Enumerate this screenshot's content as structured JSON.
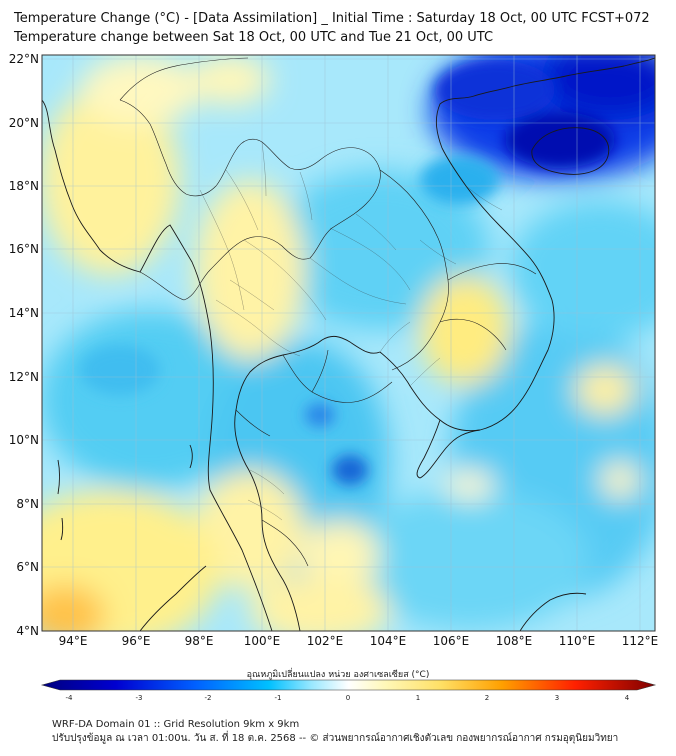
{
  "header": {
    "title_line1": "Temperature Change (°C) - [Data Assimilation] _ Initial Time : Saturday 18 Oct, 00 UTC FCST+072",
    "title_line2": "Temperature change between Sat 18 Oct, 00 UTC and Tue 21 Oct, 00 UTC"
  },
  "map": {
    "lat_labels": [
      "22°N",
      "20°N",
      "18°N",
      "16°N",
      "14°N",
      "12°N",
      "10°N",
      "8°N",
      "6°N",
      "4°N"
    ],
    "lon_labels": [
      "94°E",
      "96°E",
      "98°E",
      "100°E",
      "102°E",
      "104°E",
      "106°E",
      "108°E",
      "110°E",
      "112°E"
    ],
    "lat_range": [
      4,
      22.2
    ],
    "lon_range": [
      93,
      112.4
    ],
    "frame_color": "#333333"
  },
  "colorbar": {
    "label": "อุณหภูมิเปลี่ยนแปลง หน่วย องศาเซลเซียส (°C)",
    "ticks": [
      "-4",
      "-3",
      "-2",
      "-1",
      "0",
      "1",
      "2",
      "3",
      "4"
    ],
    "range": [
      -4,
      4
    ],
    "colors": [
      "#00007f",
      "#0000c8",
      "#0032ff",
      "#0080ff",
      "#00c8ff",
      "#8ce6ff",
      "#ffffff",
      "#fff7b0",
      "#ffe066",
      "#ffb000",
      "#ff6000",
      "#e80000",
      "#7f0000"
    ]
  },
  "footer": {
    "line1": "WRF-DA Domain 01 :: Grid Resolution 9km x 9km",
    "line2": "ปรับปรุงข้อมูล ณ เวลา 01:00น. วัน ส. ที่ 18 ต.ค. 2568 -- © ส่วนพยากรณ์อากาศเชิงตัวเลข กองพยากรณ์อากาศ กรมอุตุนิยมวิทยา"
  }
}
